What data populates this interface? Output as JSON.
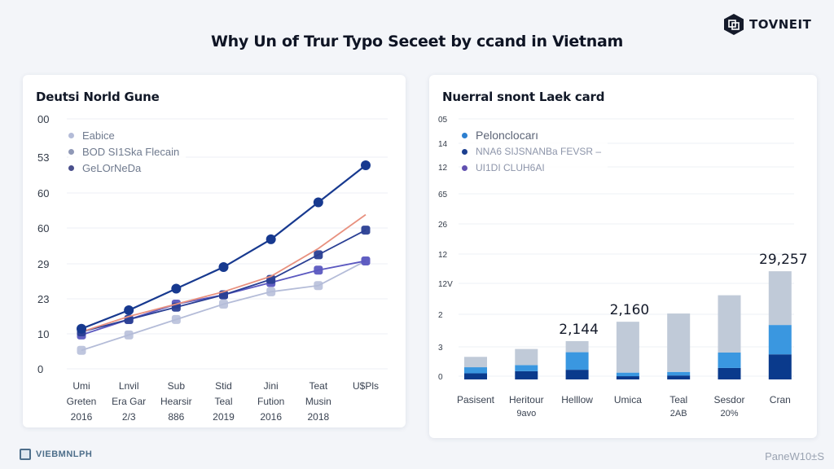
{
  "header": {
    "title": "Why Un of Trur Typo Seceet by ccand in Vietnam",
    "brand_name": "TOVNEIT",
    "brand_icon": "hexagon-logo-icon"
  },
  "footer": {
    "left_label": "VIEBMNLPH",
    "left_icon": "image-frame-icon",
    "right_label": "PaneW10±S"
  },
  "colors": {
    "navy": "#17398f",
    "salmon": "#e8917f",
    "royal": "#2a3f94",
    "purple": "#5b58c0",
    "light_grey": "#b4bcd8",
    "bar_dark": "#0a3a8c",
    "bar_mid": "#3a97e0",
    "bar_light": "#c0cad8"
  },
  "left_card": {
    "title": "Deutsi Norld Gune",
    "legend": [
      {
        "label": "Eabice",
        "color": "#b4bcd8"
      },
      {
        "label": "BOD SI1Ska Flecain",
        "color": "#8f98b6"
      },
      {
        "label": "GeLOrNeDa",
        "color": "#4a4f8c"
      }
    ]
  },
  "right_card": {
    "title": "Nuerral snont Laek card",
    "legend": [
      {
        "label": "Pelonclocarı",
        "color": "#2d7fd0"
      },
      {
        "label": "NNA6 SIJSNANBa FEVSR –",
        "color": "#1c3f8f"
      },
      {
        "label": "UI1DI CLUH6AI",
        "color": "#6150b0"
      }
    ]
  },
  "chart_data": [
    {
      "type": "line",
      "title": "Deutsi Norld Gune",
      "xlabel": "",
      "ylabel": "",
      "y_tick_labels": [
        "00",
        "53",
        "60",
        "60",
        "29",
        "23",
        "10",
        "0"
      ],
      "categories": [
        "Umi Greten 2016",
        "Lnvil Era Gar 2/3",
        "Sub Hearsir 886",
        "Stid Teal 2019",
        "Jini Fution 2016",
        "Teat Musin 2018",
        "U$Pls"
      ],
      "ylim": [
        0,
        80
      ],
      "grid": true,
      "legend_position": "top-left",
      "series": [
        {
          "name": "navy",
          "color": "#17398f",
          "values": [
            13,
            19,
            26,
            33,
            42,
            54,
            66
          ]
        },
        {
          "name": "salmon",
          "color": "#e8917f",
          "values": [
            12,
            17,
            21,
            25,
            30,
            39,
            50
          ]
        },
        {
          "name": "royal",
          "color": "#2a3f94",
          "values": [
            12,
            16,
            20,
            24,
            29,
            37,
            45
          ]
        },
        {
          "name": "GeLOrNeDa",
          "color": "#5b58c0",
          "values": [
            11,
            16,
            21,
            24,
            28,
            32,
            35
          ]
        },
        {
          "name": "Eabice",
          "color": "#b4bcd8",
          "values": [
            6,
            11,
            16,
            21,
            25,
            27,
            35
          ]
        }
      ]
    },
    {
      "type": "bar",
      "stacked": true,
      "title": "Nuerral snont Laek card",
      "y_tick_labels": [
        "05",
        "14",
        "12",
        "65",
        "26",
        "12",
        "12V",
        "2",
        "3",
        "0"
      ],
      "categories": [
        "Pasisent",
        "Heritour 9avo",
        "Helllow",
        "Umica",
        "Teal 2AB",
        "Sesdor 20%",
        "Cran"
      ],
      "annotations": [
        {
          "category": "Helllow",
          "label": "2,144"
        },
        {
          "category": "Umica",
          "label": "2,160"
        },
        {
          "category": "Cran",
          "label": "29,257"
        }
      ],
      "grid": true,
      "legend_position": "top-left",
      "series": [
        {
          "name": "UI1DI CLUH6AI",
          "color": "#0a3a8c",
          "values": [
            17,
            23,
            27,
            9,
            11,
            32,
            70
          ]
        },
        {
          "name": "NNA6 SIJSNANBa FEVSR",
          "color": "#3a97e0",
          "values": [
            17,
            17,
            49,
            10,
            10,
            43,
            82
          ]
        },
        {
          "name": "Pelonclocarı",
          "color": "#c0cad8",
          "values": [
            29,
            45,
            31,
            142,
            163,
            160,
            150
          ]
        }
      ]
    }
  ]
}
